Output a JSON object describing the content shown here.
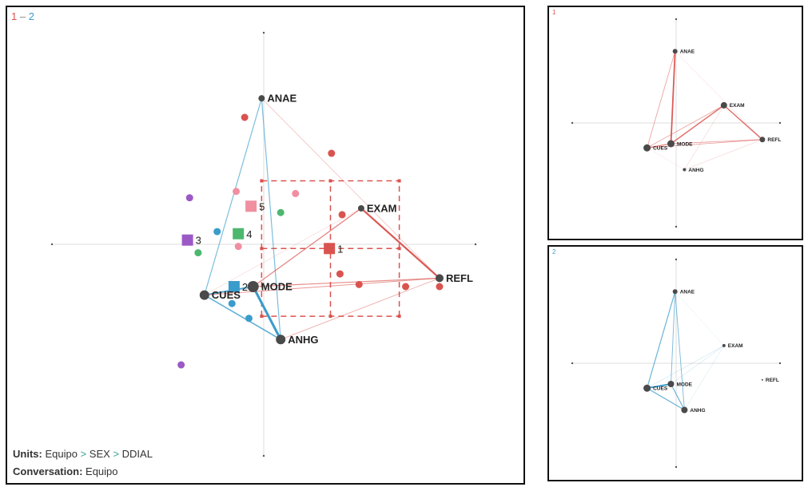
{
  "comparison": {
    "left": "1",
    "dash": " – ",
    "right": "2"
  },
  "colors": {
    "group1": "#d9534f",
    "group2": "#3a9ccb",
    "node": "#4a4a4a",
    "axis": "#dddddd",
    "group3": "#9b59c6",
    "group4": "#4cb86e",
    "group5": "#f08fa0"
  },
  "nodes": [
    {
      "label": "ANAE",
      "x": -0.01,
      "y": 0.69
    },
    {
      "label": "EXAM"
    },
    {
      "label": "REFL",
      "x": 0.83,
      "y": -0.16
    },
    {
      "label": "MODE",
      "x": -0.05,
      "y": -0.2
    },
    {
      "label": "CUES",
      "x": -0.28,
      "y": -0.24
    },
    {
      "label": "ANHG",
      "x": 0.08,
      "y": -0.45
    }
  ],
  "main_plot": {
    "node_sizes": [
      4,
      4,
      5,
      7,
      6,
      6
    ],
    "edges": [
      {
        "from": "ANAE",
        "to": "CUES",
        "group": "group2",
        "weight": 1.2
      },
      {
        "from": "ANAE",
        "to": "ANHG",
        "group": "group2",
        "weight": 1.2
      },
      {
        "from": "CUES",
        "to": "MODE",
        "group": "group2",
        "weight": 2
      },
      {
        "from": "CUES",
        "to": "ANHG",
        "group": "group2",
        "weight": 1.6
      },
      {
        "from": "MODE",
        "to": "ANHG",
        "group": "group2",
        "weight": 3
      },
      {
        "from": "EXAM",
        "to": "MODE",
        "group": "group1",
        "weight": 1.3
      },
      {
        "from": "EXAM",
        "to": "REFL",
        "group": "group1",
        "weight": 2.2
      },
      {
        "from": "MODE",
        "to": "REFL",
        "group": "group1",
        "weight": 1.2
      },
      {
        "from": "CUES",
        "to": "REFL",
        "group": "group1",
        "weight": 1
      },
      {
        "from": "ANHG",
        "to": "REFL",
        "group": "group1",
        "weight": 0.8
      },
      {
        "from": "ANAE",
        "to": "REFL",
        "group": "group1",
        "weight": 0.6
      },
      {
        "from": "CUES",
        "to": "EXAM",
        "group": "group1",
        "weight": 0.4
      }
    ],
    "points": [
      {
        "group": "group1",
        "x": -0.09,
        "y": 0.6
      },
      {
        "group": "group1",
        "x": 0.32,
        "y": 0.43
      },
      {
        "group": "group1",
        "x": 0.37,
        "y": 0.14
      },
      {
        "group": "group1",
        "x": 0.36,
        "y": -0.14
      },
      {
        "group": "group1",
        "x": 0.45,
        "y": -0.19
      },
      {
        "group": "group1",
        "x": 0.67,
        "y": -0.2
      },
      {
        "group": "group1",
        "x": 0.83,
        "y": -0.2
      },
      {
        "group": "group5",
        "x": -0.13,
        "y": 0.25
      },
      {
        "group": "group5",
        "x": 0.15,
        "y": 0.24
      },
      {
        "group": "group5",
        "x": -0.12,
        "y": -0.01
      },
      {
        "group": "group4",
        "x": 0.08,
        "y": 0.15
      },
      {
        "group": "group4",
        "x": -0.31,
        "y": -0.04
      },
      {
        "group": "group3",
        "x": -0.35,
        "y": 0.22
      },
      {
        "group": "group3",
        "x": -0.39,
        "y": -0.57
      },
      {
        "group": "group2",
        "x": -0.22,
        "y": 0.06
      },
      {
        "group": "group2",
        "x": -0.15,
        "y": -0.28
      },
      {
        "group": "group2",
        "x": -0.07,
        "y": -0.35
      }
    ],
    "means": [
      {
        "label": "1",
        "group": "group1",
        "x": 0.31,
        "y": -0.02
      },
      {
        "label": "2",
        "group": "group2",
        "x": -0.14,
        "y": -0.2
      },
      {
        "label": "3",
        "group": "group3",
        "x": -0.36,
        "y": 0.02
      },
      {
        "label": "4",
        "group": "group4",
        "x": -0.12,
        "y": 0.05
      },
      {
        "label": "5",
        "group": "group5",
        "x": -0.06,
        "y": 0.18
      }
    ],
    "confidence_interval": {
      "group": "group1",
      "x": [
        -0.01,
        0.64
      ],
      "y": [
        -0.34,
        0.3
      ]
    }
  },
  "network_1": {
    "title": "1",
    "group": "group1",
    "node_sizes": [
      3,
      4,
      3.5,
      4.5,
      4.5,
      2
    ],
    "edges": [
      {
        "from": "ANAE",
        "to": "MODE",
        "weight": 2.2
      },
      {
        "from": "ANAE",
        "to": "CUES",
        "weight": 1
      },
      {
        "from": "EXAM",
        "to": "MODE",
        "weight": 1.8
      },
      {
        "from": "EXAM",
        "to": "CUES",
        "weight": 1
      },
      {
        "from": "EXAM",
        "to": "REFL",
        "weight": 1.8
      },
      {
        "from": "MODE",
        "to": "REFL",
        "weight": 1
      },
      {
        "from": "CUES",
        "to": "REFL",
        "weight": 1
      },
      {
        "from": "CUES",
        "to": "MODE",
        "weight": 1.5
      },
      {
        "from": "ANAE",
        "to": "REFL",
        "weight": 0.4
      },
      {
        "from": "ANHG",
        "to": "REFL",
        "weight": 0.5
      },
      {
        "from": "ANHG",
        "to": "EXAM",
        "weight": 0.5
      },
      {
        "from": "CUES",
        "to": "ANHG",
        "weight": 0.3
      }
    ]
  },
  "network_2": {
    "title": "2",
    "group": "group2",
    "node_sizes": [
      3,
      2,
      1,
      4,
      4.5,
      4
    ],
    "edges": [
      {
        "from": "ANAE",
        "to": "CUES",
        "weight": 1.5
      },
      {
        "from": "ANAE",
        "to": "MODE",
        "weight": 1.2
      },
      {
        "from": "ANAE",
        "to": "ANHG",
        "weight": 1.2
      },
      {
        "from": "CUES",
        "to": "MODE",
        "weight": 2.5
      },
      {
        "from": "CUES",
        "to": "ANHG",
        "weight": 1.5
      },
      {
        "from": "MODE",
        "to": "ANHG",
        "weight": 1.5
      },
      {
        "from": "EXAM",
        "to": "CUES",
        "weight": 0.5
      },
      {
        "from": "EXAM",
        "to": "MODE",
        "weight": 0.5
      },
      {
        "from": "EXAM",
        "to": "ANHG",
        "weight": 0.4
      },
      {
        "from": "ANAE",
        "to": "EXAM",
        "weight": 0.3
      }
    ]
  },
  "footer": {
    "units_label": "Units:",
    "units": [
      "Equipo",
      "SEX",
      "DDIAL"
    ],
    "separator": ">",
    "conversation_label": "Conversation:",
    "conversation": "Equipo"
  }
}
